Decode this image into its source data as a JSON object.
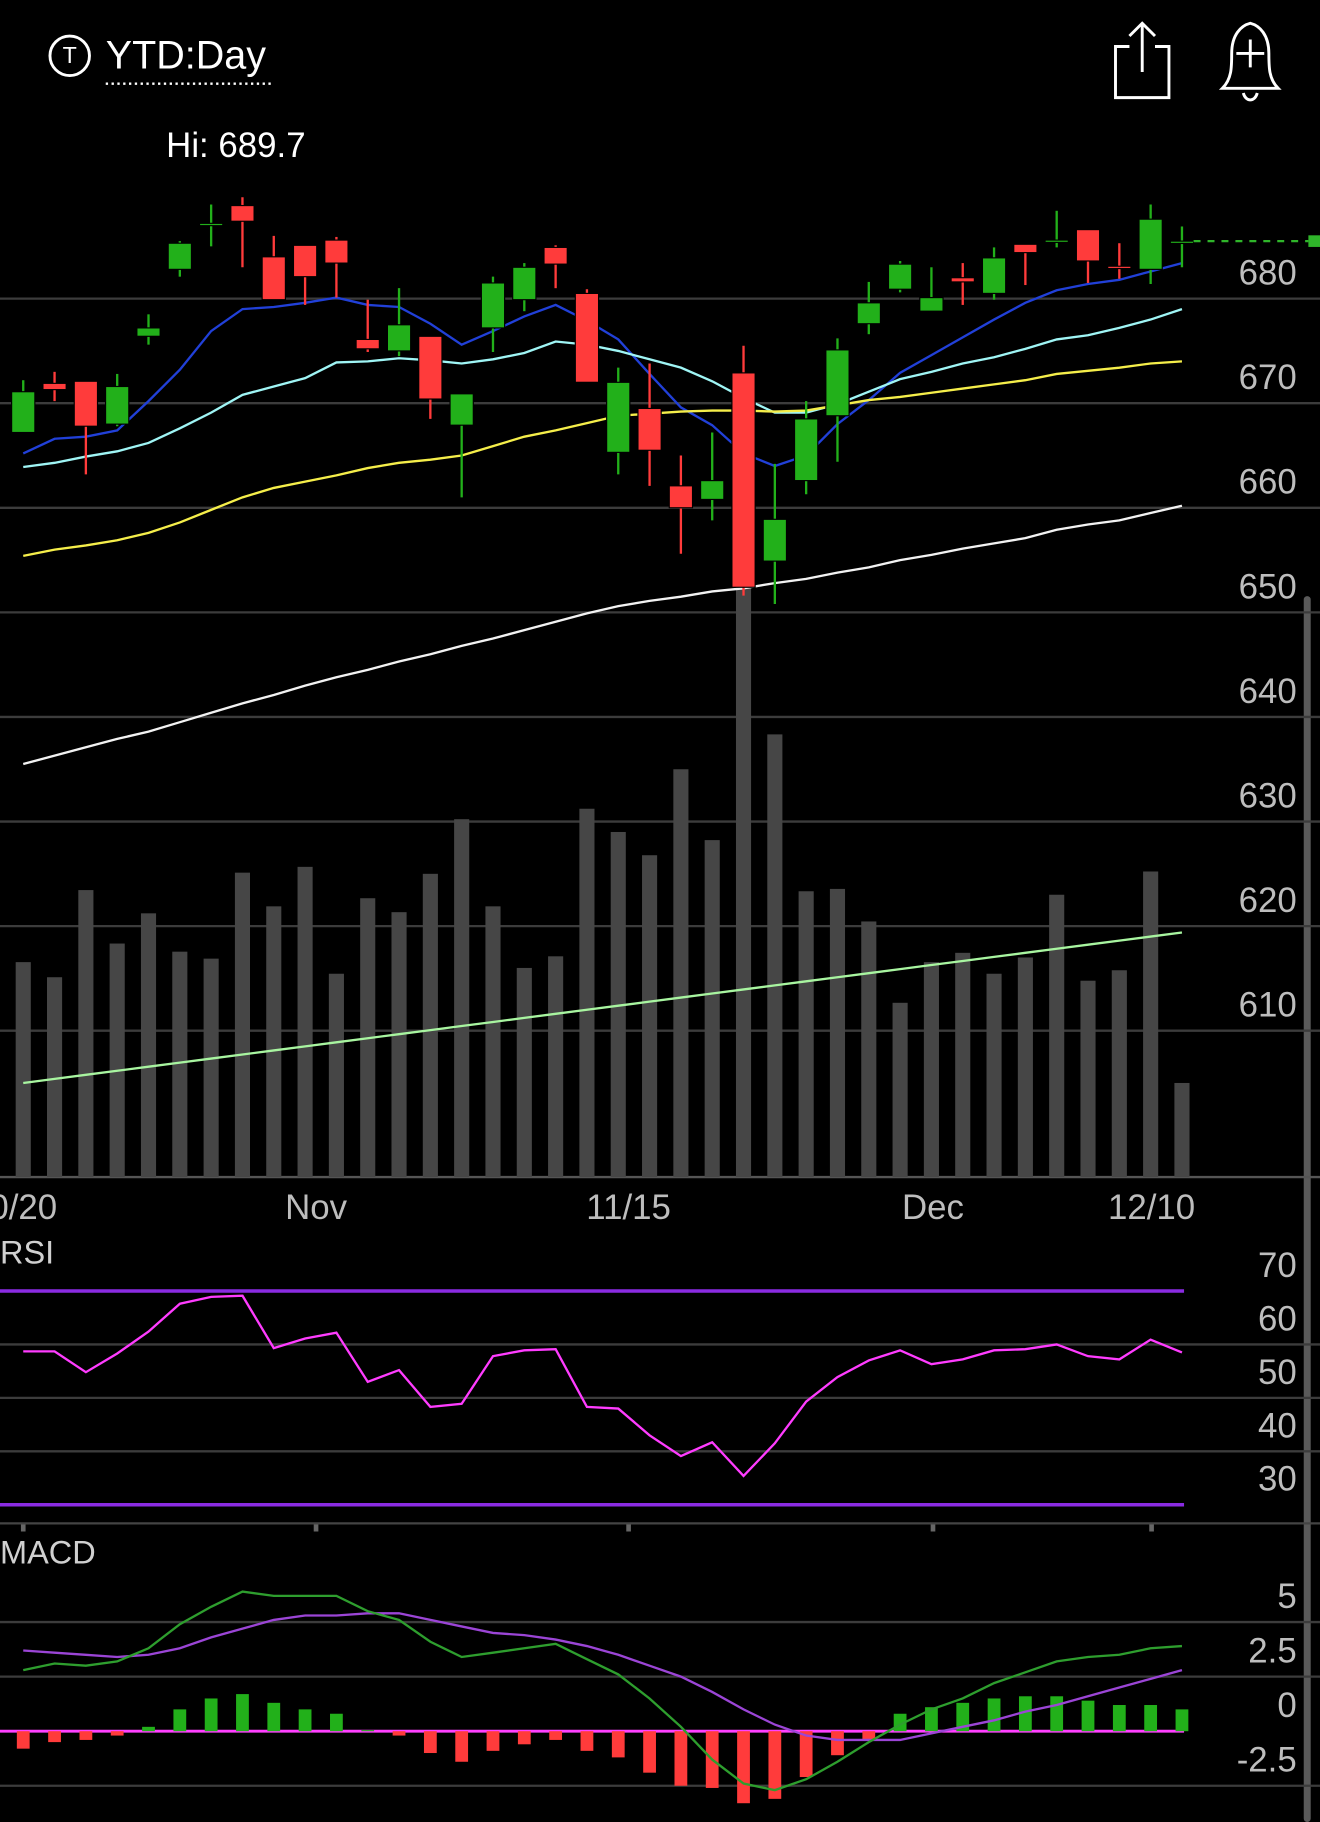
{
  "header": {
    "icon": "T",
    "title": "YTD:Day"
  },
  "chart_data": [
    {
      "type": "candlestick",
      "annotation": "Hi: 689.7",
      "up_color": "#22b01a",
      "down_color": "#ff3b3b",
      "open": [
        667.2,
        671.9,
        672.1,
        668.0,
        676.4,
        682.8,
        687.0,
        688.9,
        684.0,
        685.1,
        685.6,
        676.1,
        675.0,
        676.4,
        667.9,
        677.2,
        679.9,
        684.9,
        680.5,
        665.3,
        669.5,
        662.1,
        660.8,
        672.9,
        654.9,
        662.6,
        668.8,
        677.6,
        680.9,
        678.8,
        682.0,
        680.5,
        685.2,
        685.4,
        686.6,
        683.1,
        682.8,
        685.3
      ],
      "high": [
        672.2,
        673.0,
        672.1,
        672.8,
        678.5,
        685.5,
        689.0,
        689.7,
        686.0,
        685.1,
        685.9,
        679.9,
        681.0,
        676.4,
        670.9,
        682.1,
        683.4,
        685.1,
        680.9,
        673.4,
        673.8,
        665.0,
        667.2,
        675.5,
        664.2,
        670.2,
        676.2,
        681.6,
        683.6,
        683.0,
        683.4,
        684.9,
        685.2,
        688.4,
        686.6,
        685.3,
        689.0,
        686.9
      ],
      "low": [
        667.2,
        670.2,
        663.2,
        667.8,
        675.6,
        682.1,
        685.0,
        683.0,
        679.9,
        679.4,
        680.1,
        674.9,
        674.5,
        668.5,
        661.0,
        674.9,
        678.8,
        681.0,
        672.0,
        663.2,
        662.1,
        655.6,
        658.8,
        651.6,
        650.8,
        661.3,
        664.4,
        676.6,
        680.6,
        678.8,
        679.4,
        679.9,
        681.3,
        684.9,
        681.5,
        681.9,
        681.4,
        683.0
      ],
      "close": [
        671.1,
        671.3,
        667.8,
        671.6,
        677.2,
        685.3,
        687.2,
        687.4,
        679.9,
        682.1,
        683.4,
        675.2,
        677.5,
        670.4,
        670.9,
        681.5,
        683.0,
        683.3,
        672.0,
        672.0,
        665.5,
        660.0,
        662.6,
        652.4,
        658.9,
        668.5,
        675.1,
        679.6,
        683.3,
        680.1,
        681.6,
        683.9,
        684.4,
        685.6,
        683.6,
        682.9,
        687.6,
        685.5
      ],
      "xlim": [
        -0.75,
        41.4
      ],
      "xticks": [
        {
          "value": 0,
          "label": "0/20"
        },
        {
          "value": 9.35,
          "label": "Nov"
        },
        {
          "value": 19.33,
          "label": "11/15"
        },
        {
          "value": 29.05,
          "label": "Dec"
        },
        {
          "value": 36.03,
          "label": "12/10"
        }
      ],
      "ylim": [
        596,
        700
      ],
      "yticks": [
        610,
        620,
        630,
        640,
        650,
        660,
        670,
        680
      ],
      "grid": true,
      "series": [
        {
          "color": "#2140d8",
          "values": [
            665.2,
            666.6,
            666.8,
            667.4,
            670.2,
            673.2,
            676.9,
            679.0,
            679.2,
            679.6,
            680.1,
            679.4,
            679.2,
            677.6,
            675.6,
            676.9,
            678.3,
            679.4,
            677.9,
            676.1,
            672.8,
            669.6,
            667.9,
            665.2,
            664.0,
            665.0,
            668.0,
            670.3,
            672.9,
            674.6,
            676.3,
            678.0,
            679.6,
            680.8,
            681.4,
            681.8,
            682.6,
            683.4
          ]
        },
        {
          "color": "#9ff5f5",
          "values": [
            663.9,
            664.3,
            664.9,
            665.4,
            666.2,
            667.6,
            669.1,
            670.8,
            671.6,
            672.4,
            673.9,
            674.0,
            674.3,
            674.1,
            673.8,
            674.2,
            674.8,
            675.9,
            675.6,
            675.0,
            674.2,
            673.4,
            672.1,
            670.5,
            669.1,
            669.1,
            669.9,
            671.1,
            672.3,
            673.0,
            673.8,
            674.4,
            675.2,
            676.1,
            676.5,
            677.2,
            678.0,
            679.0
          ]
        },
        {
          "color": "#f5ee4a",
          "values": [
            655.4,
            656.0,
            656.4,
            656.9,
            657.6,
            658.6,
            659.8,
            661.0,
            661.9,
            662.5,
            663.1,
            663.8,
            664.3,
            664.6,
            665.0,
            665.9,
            666.8,
            667.4,
            668.1,
            668.8,
            669.0,
            669.2,
            669.3,
            669.3,
            669.2,
            669.3,
            669.8,
            670.3,
            670.6,
            671.0,
            671.4,
            671.8,
            672.2,
            672.8,
            673.1,
            673.4,
            673.8,
            674.0
          ]
        },
        {
          "color": "#f2f2f2",
          "values": [
            635.5,
            636.3,
            637.1,
            637.9,
            638.6,
            639.5,
            640.4,
            641.3,
            642.1,
            643.0,
            643.8,
            644.5,
            645.3,
            646.0,
            646.8,
            647.5,
            648.3,
            649.1,
            649.9,
            650.6,
            651.1,
            651.5,
            652.0,
            652.3,
            652.8,
            653.2,
            653.8,
            654.3,
            655.0,
            655.5,
            656.1,
            656.6,
            657.1,
            657.9,
            658.4,
            658.8,
            659.5,
            660.2
          ]
        }
      ],
      "last_price_color": "#2fb52a",
      "volume": {
        "color": "#464646",
        "ylim": [
          0,
          520
        ],
        "values": [
          185,
          172,
          247,
          201,
          227,
          194,
          188,
          262,
          233,
          267,
          175,
          240,
          228,
          261,
          308,
          233,
          180,
          190,
          317,
          297,
          277,
          351,
          290,
          513,
          381,
          246,
          248,
          220,
          150,
          185,
          193,
          175,
          189,
          243,
          169,
          178,
          263,
          81
        ],
        "ma_color": "#a8f5a0",
        "ma": [
          81,
          84.5,
          88,
          91.5,
          95,
          98.5,
          102,
          105.5,
          109,
          112.5,
          116,
          119.5,
          123,
          126.5,
          130,
          133.5,
          137,
          140.5,
          144,
          147.5,
          151,
          154.5,
          158,
          161.5,
          165,
          168.5,
          172,
          175.5,
          179,
          182.5,
          186,
          189.5,
          193,
          196.5,
          200,
          203.5,
          207,
          210.5
        ]
      }
    },
    {
      "type": "line",
      "title": "RSI",
      "color": "#ff3cff",
      "values": [
        58.7,
        58.7,
        54.8,
        58.3,
        62.4,
        67.6,
        68.9,
        69.1,
        59.3,
        61.1,
        62.2,
        53.0,
        55.2,
        48.3,
        48.9,
        57.8,
        58.9,
        59.1,
        48.3,
        48.0,
        43.0,
        39.1,
        41.7,
        35.4,
        41.5,
        49.3,
        53.9,
        57.0,
        58.9,
        56.3,
        57.2,
        58.9,
        59.1,
        60.0,
        57.8,
        57.2,
        60.9,
        58.5
      ],
      "ylim": [
        25,
        75
      ],
      "yticks": [
        30,
        40,
        50,
        60,
        70
      ],
      "bands": [
        30,
        70
      ],
      "band_color": "#8a2be2",
      "grid": true
    },
    {
      "type": "macd",
      "title": "MACD",
      "macd_color": "#2e9e2e",
      "signal_color": "#9b45d6",
      "zero_color": "#ff40ff",
      "macd": [
        2.8,
        3.1,
        3.0,
        3.2,
        3.8,
        4.9,
        5.7,
        6.4,
        6.2,
        6.2,
        6.2,
        5.5,
        5.1,
        4.1,
        3.4,
        3.6,
        3.8,
        4.0,
        3.3,
        2.6,
        1.5,
        0.2,
        -1.3,
        -2.4,
        -2.7,
        -2.2,
        -1.4,
        -0.5,
        0.3,
        1.0,
        1.5,
        2.2,
        2.7,
        3.2,
        3.4,
        3.5,
        3.8,
        3.9
      ],
      "signal": [
        3.7,
        3.6,
        3.5,
        3.4,
        3.5,
        3.8,
        4.3,
        4.7,
        5.1,
        5.3,
        5.3,
        5.4,
        5.4,
        5.1,
        4.8,
        4.5,
        4.4,
        4.2,
        3.9,
        3.5,
        3.0,
        2.5,
        1.8,
        1.0,
        0.3,
        -0.2,
        -0.4,
        -0.4,
        -0.4,
        -0.1,
        0.2,
        0.5,
        0.9,
        1.2,
        1.6,
        2.0,
        2.4,
        2.8
      ],
      "histogram": [
        -0.8,
        -0.5,
        -0.4,
        -0.2,
        0.2,
        1.0,
        1.5,
        1.7,
        1.3,
        1.0,
        0.8,
        0.05,
        -0.2,
        -1.0,
        -1.4,
        -0.9,
        -0.6,
        -0.4,
        -0.9,
        -1.2,
        -1.9,
        -2.5,
        -2.6,
        -3.3,
        -3.1,
        -2.1,
        -1.1,
        -0.4,
        0.8,
        1.1,
        1.3,
        1.5,
        1.6,
        1.6,
        1.4,
        1.2,
        1.2,
        1.0
      ],
      "up_color": "#22b01a",
      "down_color": "#ff3b3b",
      "ylim": [
        -4,
        7.5
      ],
      "yticks": [
        -2.5,
        0,
        2.5,
        5
      ],
      "grid": true
    }
  ]
}
